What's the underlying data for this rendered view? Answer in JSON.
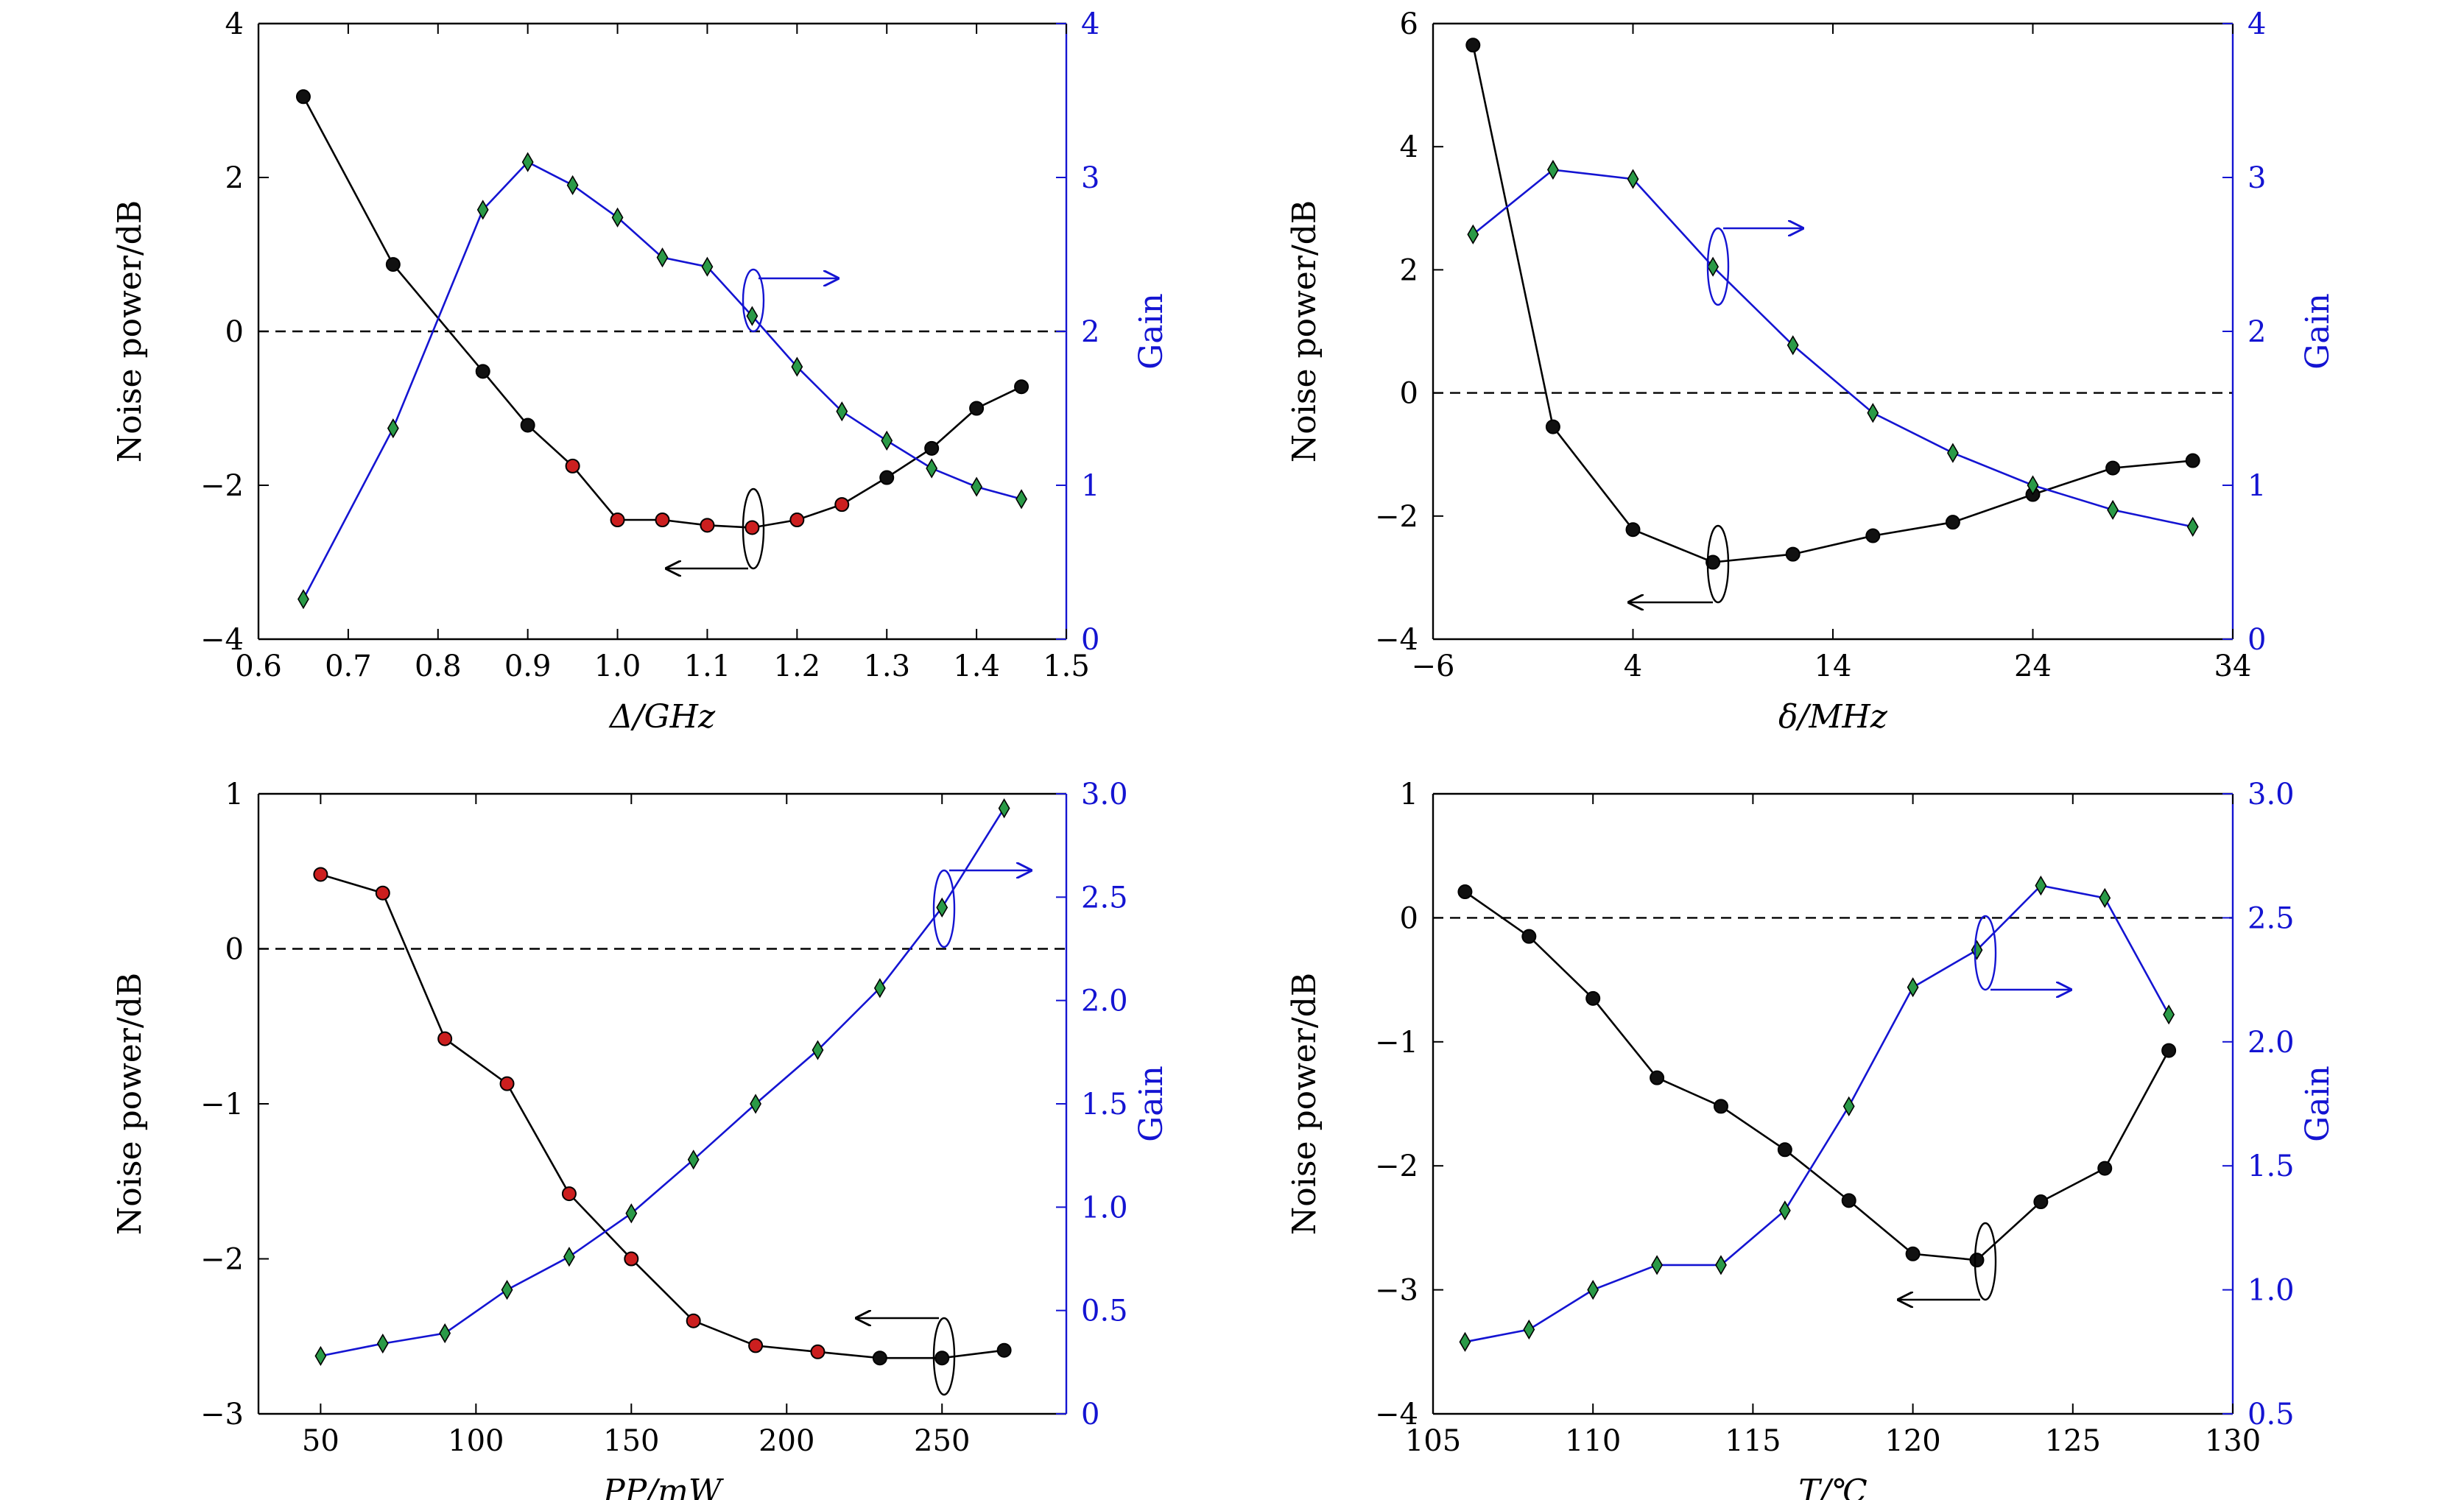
{
  "chart_data": [
    {
      "type": "line",
      "panel": "top-left",
      "xlabel": "Δ/GHz",
      "ylabel_left": "Noise power/dB",
      "ylabel_right": "Gain",
      "xlim": [
        0.6,
        1.5
      ],
      "ylim_left": [
        -4,
        4
      ],
      "ylim_right": [
        0,
        4
      ],
      "xticks": [
        0.6,
        0.7,
        0.8,
        0.9,
        1.0,
        1.1,
        1.2,
        1.3,
        1.4,
        1.5
      ],
      "xtick_labels": [
        "0.6",
        "0.7",
        "0.8",
        "0.9",
        "1.0",
        "1.1",
        "1.2",
        "1.3",
        "1.4",
        "1.5"
      ],
      "yticks_left": [
        -4,
        -2,
        0,
        2,
        4
      ],
      "ytick_labels_left": [
        "−4",
        "−2",
        "0",
        "2",
        "4"
      ],
      "yticks_right": [
        0,
        1,
        2,
        3,
        4
      ],
      "ytick_labels_right": [
        "0",
        "1",
        "2",
        "3",
        "4"
      ],
      "reference_line_y": 0,
      "series": [
        {
          "axis": "left",
          "color": "#000000",
          "x": [
            0.65,
            0.75,
            0.85,
            0.9,
            0.95,
            1.0,
            1.05,
            1.1,
            1.15,
            1.2,
            1.25,
            1.3,
            1.35,
            1.4,
            1.45
          ],
          "y": [
            3.05,
            0.87,
            -0.52,
            -1.22,
            -1.75,
            -2.45,
            -2.45,
            -2.52,
            -2.55,
            -2.45,
            -2.25,
            -1.9,
            -1.52,
            -1.0,
            -0.72
          ],
          "marker_colors": [
            "#111111",
            "#111111",
            "#111111",
            "#111111",
            "#cc1f1f",
            "#cc1f1f",
            "#cc1f1f",
            "#cc1f1f",
            "#cc1f1f",
            "#cc1f1f",
            "#cc1f1f",
            "#111111",
            "#111111",
            "#111111",
            "#111111"
          ]
        },
        {
          "axis": "right",
          "color": "#1414d2",
          "marker_color": "#2a9a47",
          "x": [
            0.65,
            0.75,
            0.85,
            0.9,
            0.95,
            1.0,
            1.05,
            1.1,
            1.15,
            1.2,
            1.25,
            1.3,
            1.35,
            1.4,
            1.45
          ],
          "y": [
            0.26,
            1.37,
            2.79,
            3.1,
            2.95,
            2.74,
            2.48,
            2.42,
            2.1,
            1.77,
            1.48,
            1.29,
            1.11,
            0.99,
            0.91
          ]
        }
      ]
    },
    {
      "type": "line",
      "panel": "top-right",
      "xlabel": "δ/MHz",
      "ylabel_left": "Noise power/dB",
      "ylabel_right": "Gain",
      "xlim": [
        -6,
        34
      ],
      "ylim_left": [
        -4,
        6
      ],
      "ylim_right": [
        0,
        4
      ],
      "xticks": [
        -6,
        4,
        14,
        24,
        34
      ],
      "xtick_labels": [
        "−6",
        "4",
        "14",
        "24",
        "34"
      ],
      "yticks_left": [
        -4,
        -2,
        0,
        2,
        4,
        6
      ],
      "ytick_labels_left": [
        "−4",
        "−2",
        "0",
        "2",
        "4",
        "6"
      ],
      "yticks_right": [
        0,
        1,
        2,
        3,
        4
      ],
      "ytick_labels_right": [
        "0",
        "1",
        "2",
        "3",
        "4"
      ],
      "reference_line_y": 0,
      "series": [
        {
          "axis": "left",
          "color": "#000000",
          "x": [
            -4,
            0,
            4,
            8,
            12,
            16,
            20,
            24,
            28,
            32
          ],
          "y": [
            5.65,
            -0.55,
            -2.22,
            -2.75,
            -2.62,
            -2.32,
            -2.1,
            -1.65,
            -1.22,
            -1.1
          ],
          "marker_colors": [
            "#111111",
            "#111111",
            "#111111",
            "#111111",
            "#111111",
            "#111111",
            "#111111",
            "#111111",
            "#111111",
            "#111111"
          ]
        },
        {
          "axis": "right",
          "color": "#1414d2",
          "marker_color": "#2a9a47",
          "x": [
            -4,
            0,
            4,
            8,
            12,
            16,
            20,
            24,
            28,
            32
          ],
          "y": [
            2.63,
            3.05,
            2.99,
            2.42,
            1.91,
            1.47,
            1.21,
            1.0,
            0.84,
            0.73
          ]
        }
      ]
    },
    {
      "type": "line",
      "panel": "bottom-left",
      "xlabel": "PP/mW",
      "ylabel_left": "Noise power/dB",
      "ylabel_right": "Gain",
      "xlim": [
        30,
        290
      ],
      "ylim_left": [
        -3,
        1
      ],
      "ylim_right": [
        0,
        3
      ],
      "xticks": [
        50,
        100,
        150,
        200,
        250
      ],
      "xtick_labels": [
        "50",
        "100",
        "150",
        "200",
        "250"
      ],
      "yticks_left": [
        -3,
        -2,
        -1,
        0,
        1
      ],
      "ytick_labels_left": [
        "−3",
        "−2",
        "−1",
        "0",
        "1"
      ],
      "yticks_right": [
        0,
        0.5,
        1.0,
        1.5,
        2.0,
        2.5,
        3.0
      ],
      "ytick_labels_right": [
        "0",
        "0.5",
        "1.0",
        "1.5",
        "2.0",
        "2.5",
        "3.0"
      ],
      "reference_line_y": 0,
      "series": [
        {
          "axis": "left",
          "color": "#000000",
          "x": [
            50,
            70,
            90,
            110,
            130,
            150,
            170,
            190,
            210,
            230,
            250,
            270
          ],
          "y": [
            0.48,
            0.36,
            -0.58,
            -0.87,
            -1.58,
            -2.0,
            -2.4,
            -2.56,
            -2.6,
            -2.64,
            -2.64,
            -2.59
          ],
          "marker_colors": [
            "#cc1f1f",
            "#cc1f1f",
            "#cc1f1f",
            "#cc1f1f",
            "#cc1f1f",
            "#cc1f1f",
            "#cc1f1f",
            "#cc1f1f",
            "#cc1f1f",
            "#111111",
            "#111111",
            "#111111"
          ]
        },
        {
          "axis": "right",
          "color": "#1414d2",
          "marker_color": "#2a9a47",
          "x": [
            50,
            70,
            90,
            110,
            130,
            150,
            170,
            190,
            210,
            230,
            250,
            270
          ],
          "y": [
            0.28,
            0.34,
            0.39,
            0.6,
            0.76,
            0.97,
            1.23,
            1.5,
            1.76,
            2.06,
            2.45,
            2.93
          ]
        }
      ]
    },
    {
      "type": "line",
      "panel": "bottom-right",
      "xlabel": "T/℃",
      "ylabel_left": "Noise power/dB",
      "ylabel_right": "Gain",
      "xlim": [
        105,
        130
      ],
      "ylim_left": [
        -4,
        1
      ],
      "ylim_right": [
        0.5,
        3.0
      ],
      "xticks": [
        105,
        110,
        115,
        120,
        125,
        130
      ],
      "xtick_labels": [
        "105",
        "110",
        "115",
        "120",
        "125",
        "130"
      ],
      "yticks_left": [
        -4,
        -3,
        -2,
        -1,
        0,
        1
      ],
      "ytick_labels_left": [
        "−4",
        "−3",
        "−2",
        "−1",
        "0",
        "1"
      ],
      "yticks_right": [
        0.5,
        1.0,
        1.5,
        2.0,
        2.5,
        3.0
      ],
      "ytick_labels_right": [
        "0.5",
        "1.0",
        "1.5",
        "2.0",
        "2.5",
        "3.0"
      ],
      "reference_line_y": 0,
      "series": [
        {
          "axis": "left",
          "color": "#000000",
          "x": [
            106,
            108,
            110,
            112,
            114,
            116,
            118,
            120,
            122,
            124,
            126,
            128
          ],
          "y": [
            0.21,
            -0.15,
            -0.65,
            -1.29,
            -1.52,
            -1.87,
            -2.28,
            -2.71,
            -2.76,
            -2.29,
            -2.02,
            -1.07
          ],
          "marker_colors": [
            "#111111",
            "#111111",
            "#111111",
            "#111111",
            "#111111",
            "#111111",
            "#111111",
            "#111111",
            "#111111",
            "#111111",
            "#111111",
            "#111111"
          ]
        },
        {
          "axis": "right",
          "color": "#1414d2",
          "marker_color": "#2a9a47",
          "x": [
            106,
            108,
            110,
            112,
            114,
            116,
            118,
            120,
            122,
            124,
            126,
            128
          ],
          "y": [
            0.79,
            0.84,
            1.0,
            1.1,
            1.1,
            1.32,
            1.74,
            2.22,
            2.37,
            2.63,
            2.58,
            2.11
          ]
        }
      ]
    }
  ]
}
